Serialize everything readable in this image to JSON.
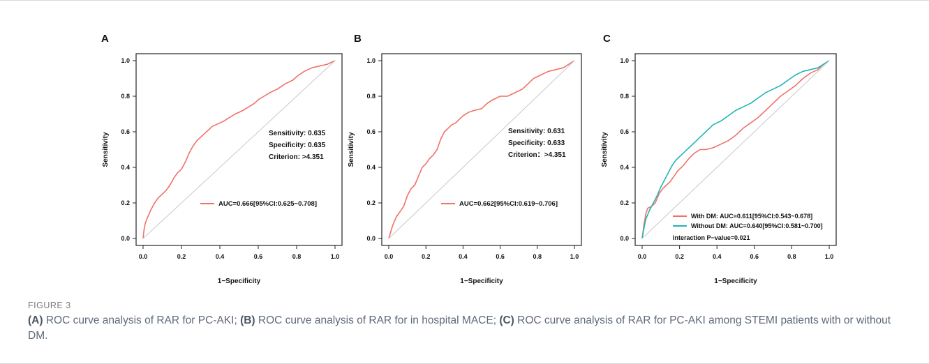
{
  "chart_data": [
    {
      "type": "line",
      "panel_label": "A",
      "xlabel": "1−Specificity",
      "ylabel": "Sensitivity",
      "xlim": [
        0,
        1
      ],
      "ylim": [
        0,
        1
      ],
      "ticks": [
        "0.0",
        "0.2",
        "0.4",
        "0.6",
        "0.8",
        "1.0"
      ],
      "grid": false,
      "annotations": [
        "Sensitivity: 0.635",
        "Specificity: 0.635",
        "Criterion: >4.351"
      ],
      "series": [
        {
          "name": "AUC=0.666[95%CI:0.625~0.708]",
          "color": "#f07167",
          "x": [
            0,
            0.005,
            0.01,
            0.02,
            0.04,
            0.06,
            0.08,
            0.1,
            0.12,
            0.14,
            0.16,
            0.18,
            0.2,
            0.22,
            0.24,
            0.26,
            0.28,
            0.3,
            0.32,
            0.34,
            0.36,
            0.38,
            0.4,
            0.42,
            0.45,
            0.48,
            0.5,
            0.52,
            0.55,
            0.58,
            0.6,
            0.63,
            0.66,
            0.7,
            0.74,
            0.78,
            0.8,
            0.84,
            0.88,
            0.92,
            0.96,
            1.0
          ],
          "y": [
            0,
            0.05,
            0.08,
            0.11,
            0.16,
            0.2,
            0.23,
            0.25,
            0.27,
            0.3,
            0.34,
            0.37,
            0.39,
            0.43,
            0.48,
            0.52,
            0.55,
            0.57,
            0.59,
            0.61,
            0.63,
            0.64,
            0.65,
            0.66,
            0.68,
            0.7,
            0.71,
            0.72,
            0.74,
            0.76,
            0.78,
            0.8,
            0.82,
            0.84,
            0.87,
            0.89,
            0.91,
            0.94,
            0.96,
            0.97,
            0.98,
            1.0
          ]
        },
        {
          "name": "",
          "color": "#c8c8c8",
          "x": [
            0,
            1
          ],
          "y": [
            0,
            1
          ]
        }
      ]
    },
    {
      "type": "line",
      "panel_label": "B",
      "xlabel": "1−Specificity",
      "ylabel": "Sensitivity",
      "xlim": [
        0,
        1
      ],
      "ylim": [
        0,
        1
      ],
      "ticks": [
        "0.0",
        "0.2",
        "0.4",
        "0.6",
        "0.8",
        "1.0"
      ],
      "grid": false,
      "annotations": [
        "Sensitivity: 0.631",
        "Specificity: 0.633",
        "Criterion：>4.351"
      ],
      "series": [
        {
          "name": "AUC=0.662[95%CI:0.619~0.706]",
          "color": "#f07167",
          "x": [
            0,
            0.02,
            0.04,
            0.06,
            0.08,
            0.1,
            0.12,
            0.14,
            0.16,
            0.18,
            0.2,
            0.22,
            0.24,
            0.26,
            0.28,
            0.3,
            0.32,
            0.34,
            0.36,
            0.38,
            0.4,
            0.43,
            0.46,
            0.5,
            0.53,
            0.56,
            0.6,
            0.64,
            0.68,
            0.72,
            0.75,
            0.78,
            0.82,
            0.86,
            0.9,
            0.94,
            0.97,
            1.0
          ],
          "y": [
            0,
            0.07,
            0.12,
            0.15,
            0.18,
            0.24,
            0.28,
            0.3,
            0.35,
            0.4,
            0.42,
            0.45,
            0.47,
            0.5,
            0.56,
            0.6,
            0.62,
            0.64,
            0.65,
            0.67,
            0.69,
            0.71,
            0.72,
            0.73,
            0.76,
            0.78,
            0.8,
            0.8,
            0.82,
            0.84,
            0.87,
            0.9,
            0.92,
            0.94,
            0.95,
            0.96,
            0.98,
            1.0
          ]
        },
        {
          "name": "",
          "color": "#c8c8c8",
          "x": [
            0,
            1
          ],
          "y": [
            0,
            1
          ]
        }
      ]
    },
    {
      "type": "line",
      "panel_label": "C",
      "xlabel": "1−Specificity",
      "ylabel": "Sensitivity",
      "xlim": [
        0,
        1
      ],
      "ylim": [
        0,
        1
      ],
      "ticks": [
        "0.0",
        "0.2",
        "0.4",
        "0.6",
        "0.8",
        "1.0"
      ],
      "grid": false,
      "annotations": [
        "Interaction P−value=0.021"
      ],
      "series": [
        {
          "name": "With DM: AUC=0.611[95%CI:0.543~0.678]",
          "color": "#f07167",
          "x": [
            0,
            0.01,
            0.02,
            0.03,
            0.05,
            0.07,
            0.09,
            0.11,
            0.13,
            0.15,
            0.17,
            0.19,
            0.22,
            0.25,
            0.28,
            0.31,
            0.34,
            0.38,
            0.42,
            0.46,
            0.5,
            0.54,
            0.58,
            0.62,
            0.66,
            0.7,
            0.74,
            0.78,
            0.82,
            0.86,
            0.9,
            0.94,
            0.97,
            1.0
          ],
          "y": [
            0,
            0.08,
            0.14,
            0.17,
            0.18,
            0.2,
            0.25,
            0.28,
            0.3,
            0.32,
            0.35,
            0.38,
            0.41,
            0.45,
            0.48,
            0.5,
            0.5,
            0.51,
            0.53,
            0.55,
            0.58,
            0.62,
            0.65,
            0.68,
            0.72,
            0.76,
            0.8,
            0.83,
            0.86,
            0.9,
            0.93,
            0.95,
            0.98,
            1.0
          ]
        },
        {
          "name": "Without DM: AUC=0.640[95%CI:0.581~0.700]",
          "color": "#1fb5b5",
          "x": [
            0,
            0.01,
            0.02,
            0.04,
            0.06,
            0.08,
            0.1,
            0.12,
            0.14,
            0.16,
            0.18,
            0.2,
            0.23,
            0.26,
            0.29,
            0.32,
            0.35,
            0.38,
            0.42,
            0.46,
            0.5,
            0.54,
            0.58,
            0.62,
            0.66,
            0.7,
            0.74,
            0.78,
            0.82,
            0.86,
            0.9,
            0.94,
            0.97,
            1.0
          ],
          "y": [
            0,
            0.06,
            0.11,
            0.16,
            0.2,
            0.24,
            0.29,
            0.33,
            0.37,
            0.41,
            0.44,
            0.46,
            0.49,
            0.52,
            0.55,
            0.58,
            0.61,
            0.64,
            0.66,
            0.69,
            0.72,
            0.74,
            0.76,
            0.79,
            0.82,
            0.84,
            0.86,
            0.89,
            0.92,
            0.94,
            0.95,
            0.96,
            0.98,
            1.0
          ]
        },
        {
          "name": "",
          "color": "#c8c8c8",
          "x": [
            0,
            1
          ],
          "y": [
            0,
            1
          ]
        }
      ]
    }
  ],
  "caption": {
    "label": "FIGURE 3",
    "parts": [
      {
        "tag": "(A)",
        "text": " ROC curve analysis of RAR for PC-AKI; "
      },
      {
        "tag": "(B)",
        "text": " ROC curve analysis of RAR for in hospital MACE; "
      },
      {
        "tag": "(C)",
        "text": " ROC curve analysis of RAR for PC-AKI among STEMI patients with or without DM."
      }
    ]
  }
}
